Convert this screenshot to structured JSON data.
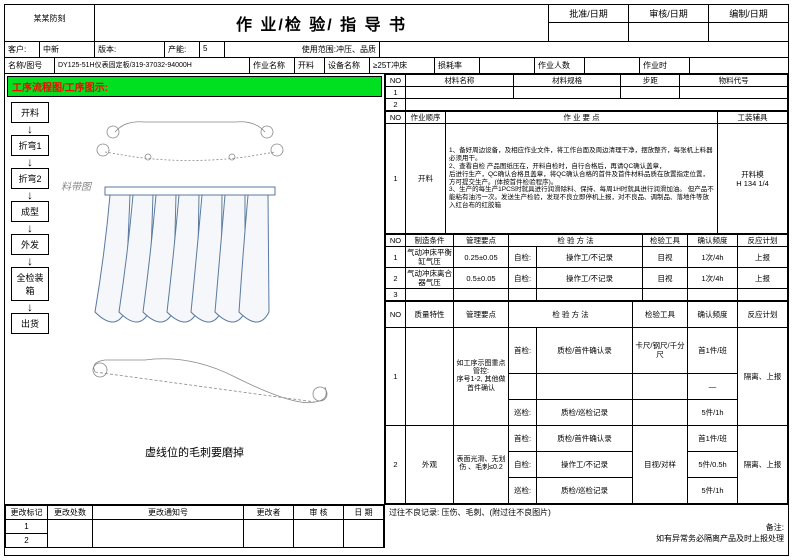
{
  "logo": "某某防刻",
  "title": "作 业/检 验/ 指 导 书",
  "approvals": [
    {
      "h": "批准/日期"
    },
    {
      "h": "审核/日期"
    },
    {
      "h": "编制/日期"
    }
  ],
  "row1": {
    "cust_l": "客户:",
    "cust": "中新",
    "ver_l": "版本:",
    "cap_l": "产能:",
    "cap": "5",
    "scope_l": "使用范围:",
    "scope": "冲压、品质"
  },
  "row2": {
    "c1": "名称/图号",
    "c1v": "DY125-51H仪表固定板/319-37032-94000H",
    "c2": "作业名称",
    "c2v": "开料",
    "c3": "设备名称",
    "c3v": "≥25T冲床",
    "c4": "损耗率",
    "c5": "作业人数",
    "c6": "作业时"
  },
  "green": "工序流程图/工序图示:",
  "flow": [
    "开料",
    "折弯1",
    "折弯2",
    "成型",
    "外发",
    "全检装箱",
    "出货"
  ],
  "diag_label": "料带图",
  "caption": "虚线位的毛刺要磨掉",
  "top_hdr": [
    "NO",
    "材料名称",
    "材料规格",
    "步距",
    "物料代号"
  ],
  "top_rows": [
    "1",
    "2"
  ],
  "mid_hdr": [
    "NO",
    "作业顺序",
    "作  业  要  点",
    "工装辅具"
  ],
  "op": {
    "no": "1",
    "name": "开料",
    "notes": "1、备好周边设备，及相应作业文件，将工作台面及周边清理干净，摆放整齐，每张机上料器必须用干。\n2、查看自检 产品图纸压在，开料自检时，自行合格后，再请QC确认盖章，\n后进行生产，QC确认合格且盖章，将QC确认合格的首件及首件材料品质在放置指定位置，方可提交生产。(体按首件检验程序)。\n3、生产的每生产1PCS时就具进行润滑除料、保持、每周1H时就具进行润滑加油。 但产品不能粘有油污一次。发送生产检验，发现不良立即停机上报，对不良品、调制品、落地件等放入红台布的红胶箱",
    "tool": "开料模\nH 134 1/4"
  },
  "cond_hdr": [
    "NO",
    "制造条件",
    "管理要点",
    "检  验  方  法",
    "检验工具",
    "确认频度",
    "反应计划"
  ],
  "cond": [
    {
      "n": "1",
      "a": "气动冲床平衡缸气压",
      "b": "0.25±0.05",
      "c": "自检:",
      "d": "操作工/不记录",
      "e": "目视",
      "f": "1次/4h",
      "g": "上报"
    },
    {
      "n": "2",
      "a": "气动冲床离合器气压",
      "b": "0.5±0.05",
      "c": "自检:",
      "d": "操作工/不记录",
      "e": "目视",
      "f": "1次/4h",
      "g": "上报"
    },
    {
      "n": "3"
    }
  ],
  "qual_hdr": [
    "NO",
    "质量特性",
    "管理要点",
    "检  验  方  法",
    "检验工具",
    "确认频度",
    "反应计划"
  ],
  "qual": [
    {
      "n": "1",
      "a": "",
      "b": "如工序示图重点管控:\n序号1-2, 其他做首件确认",
      "rows": [
        {
          "c": "首检:",
          "d": "质检/首件确认录",
          "e": "卡尺/钢尺/千分尺",
          "f": "首1件/班",
          "g": "隔离、上报"
        },
        {
          "c": "",
          "d": "",
          "e": "",
          "f": "—",
          "g": ""
        },
        {
          "c": "巡检:",
          "d": "质检/巡检记录",
          "e": "",
          "f": "5件/1h",
          "g": ""
        }
      ]
    },
    {
      "n": "2",
      "a": "外观",
      "b": "表面光滑、无划伤 、毛刺≤0.2",
      "rows": [
        {
          "c": "首检:",
          "d": "质检/首件确认录",
          "e": "目视/对样",
          "f": "首1件/班",
          "g": "隔离、上报"
        },
        {
          "c": "自检:",
          "d": "操作工/不记录",
          "e": "",
          "f": "5件/0.5h",
          "g": ""
        },
        {
          "c": "巡检:",
          "d": "质检/巡检记录",
          "e": "",
          "f": "5件/1h",
          "g": ""
        }
      ]
    }
  ],
  "foot_hdr": [
    "更改标记",
    "更改处数",
    "更改通知号",
    "更改者",
    "审 核",
    "日 期"
  ],
  "foot_note1": "过往不良记录: 压伤、毛刺、(附过往不良图片)",
  "foot_note2": "备注:\n如有异常务必隔离产品及时上报处理"
}
